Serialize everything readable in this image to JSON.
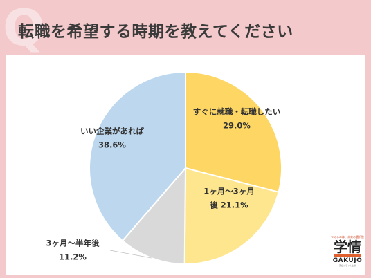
{
  "header": {
    "q_letter": "Q",
    "title": "転職を希望する時期を教えてください"
  },
  "chart_data": {
    "type": "pie",
    "slices": [
      {
        "label_lines": [
          "すぐに就職・転職したい"
        ],
        "value": 29.0,
        "value_label": "29.0%",
        "color": "#fdd663"
      },
      {
        "label_lines": [
          "1ヶ月〜3ヶ月",
          "後 21.1%"
        ],
        "value": 21.1,
        "value_label": "",
        "color": "#fde68d"
      },
      {
        "label_lines": [
          "3ヶ月〜半年後"
        ],
        "value": 11.2,
        "value_label": "11.2%",
        "color": "#d9d9d9"
      },
      {
        "label_lines": [
          "いい企業があれば"
        ],
        "value": 38.6,
        "value_label": "38.6%",
        "color": "#bdd7ee"
      }
    ],
    "start_angle_deg": 0,
    "direction": "clockwise"
  },
  "logo": {
    "tagline": "つくるのは、未来の選択肢",
    "mark": "学情",
    "word": "GAKUJO",
    "sub": "東証プライム上場"
  },
  "colors": {
    "background": "#f3c9cb",
    "card": "#ffffff",
    "title_text": "#3a3a3a",
    "label_text": "#333333"
  }
}
